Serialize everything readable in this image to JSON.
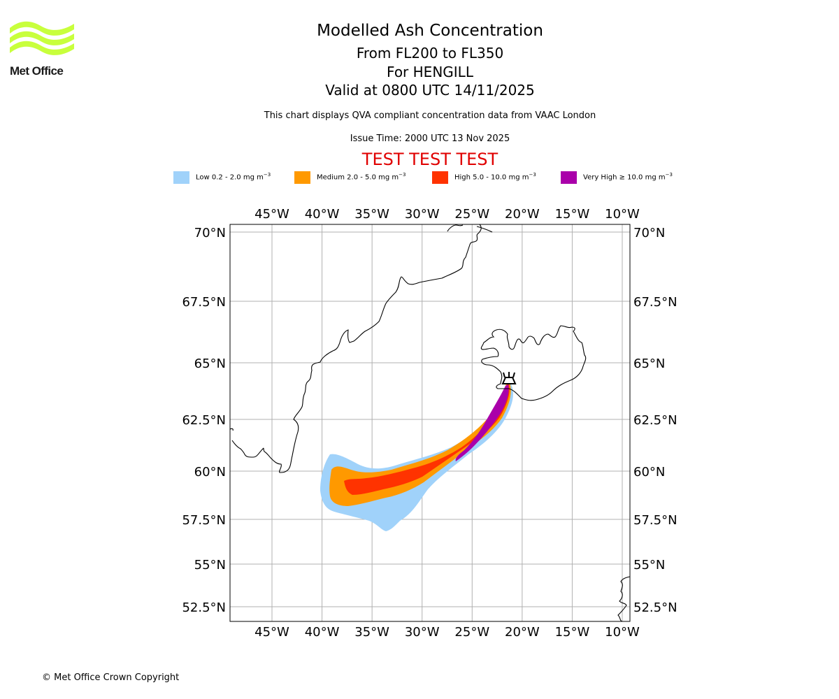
{
  "logo": {
    "text": "Met Office",
    "color": "#c8ff3c"
  },
  "header": {
    "title": "Modelled Ash Concentration",
    "levels": "From FL200 to FL350",
    "volcano": "For HENGILL",
    "valid": "Valid at 0800 UTC 14/11/2025",
    "description": "This chart displays QVA compliant concentration data from VAAC London",
    "issue_time": "Issue Time: 2000 UTC 13 Nov 2025",
    "test_banner": "TEST TEST TEST"
  },
  "legend": [
    {
      "label": "Low 0.2 - 2.0 mg m",
      "unit_exp": "−3",
      "color": "#a0d2fa"
    },
    {
      "label": "Medium 2.0 - 5.0 mg m",
      "unit_exp": "−3",
      "color": "#ff9900"
    },
    {
      "label": "High 5.0 - 10.0 mg m",
      "unit_exp": "−3",
      "color": "#ff3300"
    },
    {
      "label": "Very High  ≥  10.0 mg m",
      "unit_exp": "−3",
      "color": "#aa00aa"
    }
  ],
  "map": {
    "lon_ticks": [
      "45°W",
      "40°W",
      "35°W",
      "30°W",
      "25°W",
      "20°W",
      "15°W",
      "10°W"
    ],
    "lon_values": [
      -45,
      -40,
      -35,
      -30,
      -25,
      -20,
      -15,
      -10
    ],
    "lat_ticks": [
      "70°N",
      "67.5°N",
      "65°N",
      "62.5°N",
      "60°N",
      "57.5°N",
      "55°N",
      "52.5°N"
    ],
    "lat_values": [
      70,
      67.5,
      65,
      62.5,
      60,
      57.5,
      55,
      52.5
    ],
    "volcano_marker": {
      "name": "HENGILL",
      "lon": -21.3,
      "lat": 64.1,
      "icon": "volcano-icon"
    },
    "gridline_color": "#b0b0b0",
    "coastline_color": "#000000"
  },
  "footer": {
    "copyright": "© Met Office Crown Copyright"
  }
}
